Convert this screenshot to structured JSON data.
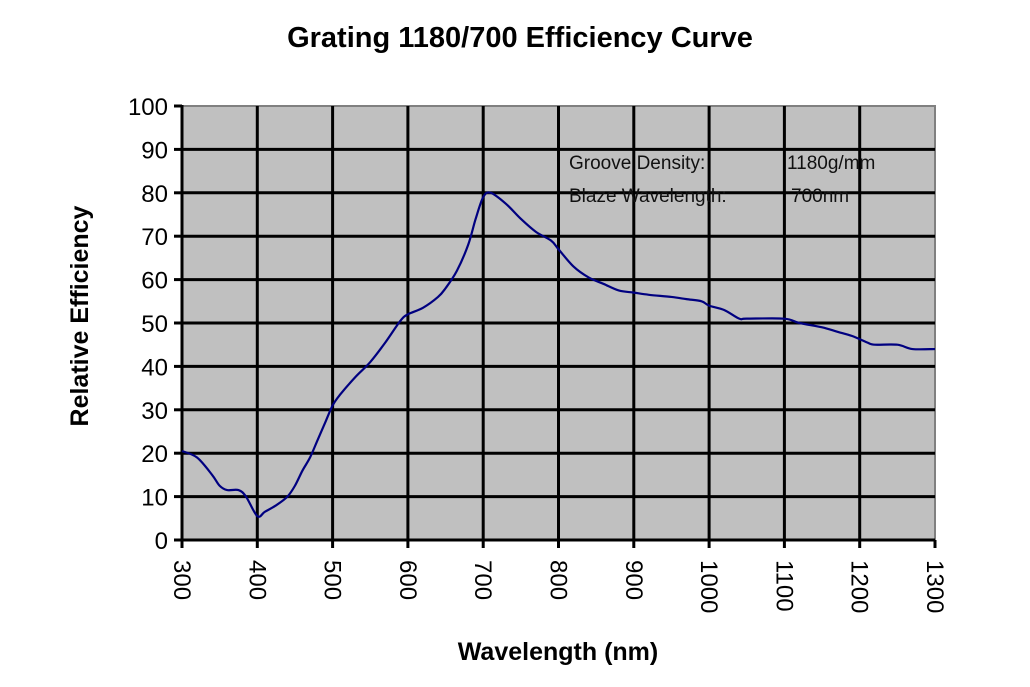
{
  "chart_data": {
    "type": "line",
    "title": "Grating 1180/700 Efficiency Curve",
    "xlabel": "Wavelength (nm)",
    "ylabel": "Relative Efficiency",
    "xlim": [
      300,
      1300
    ],
    "ylim": [
      0,
      100
    ],
    "xticks": [
      300,
      400,
      500,
      600,
      700,
      800,
      900,
      1000,
      1100,
      1200,
      1300
    ],
    "yticks": [
      0,
      10,
      20,
      30,
      40,
      50,
      60,
      70,
      80,
      90,
      100
    ],
    "grid": true,
    "plot_background": "#c0c0c0",
    "line_color": "#000080",
    "annotations": [
      {
        "label": "Groove Density:",
        "value": "1180g/mm"
      },
      {
        "label": "Blaze Wavelength:",
        "value": "700nm"
      }
    ],
    "series": [
      {
        "name": "Efficiency",
        "x": [
          300,
          320,
          340,
          350,
          360,
          375,
          385,
          400,
          410,
          425,
          440,
          450,
          460,
          470,
          480,
          490,
          500,
          510,
          530,
          550,
          570,
          590,
          600,
          620,
          640,
          650,
          665,
          680,
          690,
          700,
          710,
          730,
          750,
          770,
          790,
          800,
          820,
          840,
          860,
          880,
          900,
          920,
          950,
          970,
          990,
          1000,
          1020,
          1040,
          1050,
          1100,
          1120,
          1150,
          1170,
          1190,
          1210,
          1220,
          1250,
          1270,
          1300
        ],
        "y": [
          20.5,
          19,
          15,
          12.5,
          11.5,
          11.5,
          10,
          5.5,
          6.5,
          8,
          10,
          12.5,
          16,
          19,
          23,
          27,
          31,
          33.5,
          37.5,
          41,
          45.5,
          50.5,
          52,
          53.5,
          56,
          58,
          62,
          68,
          74,
          79,
          80,
          77.5,
          74,
          71,
          69,
          67,
          63,
          60.5,
          59,
          57.5,
          57,
          56.5,
          56,
          55.5,
          55,
          54,
          53,
          51,
          51,
          51,
          50,
          49,
          48,
          47,
          45.5,
          45,
          45,
          44,
          44
        ]
      }
    ]
  }
}
